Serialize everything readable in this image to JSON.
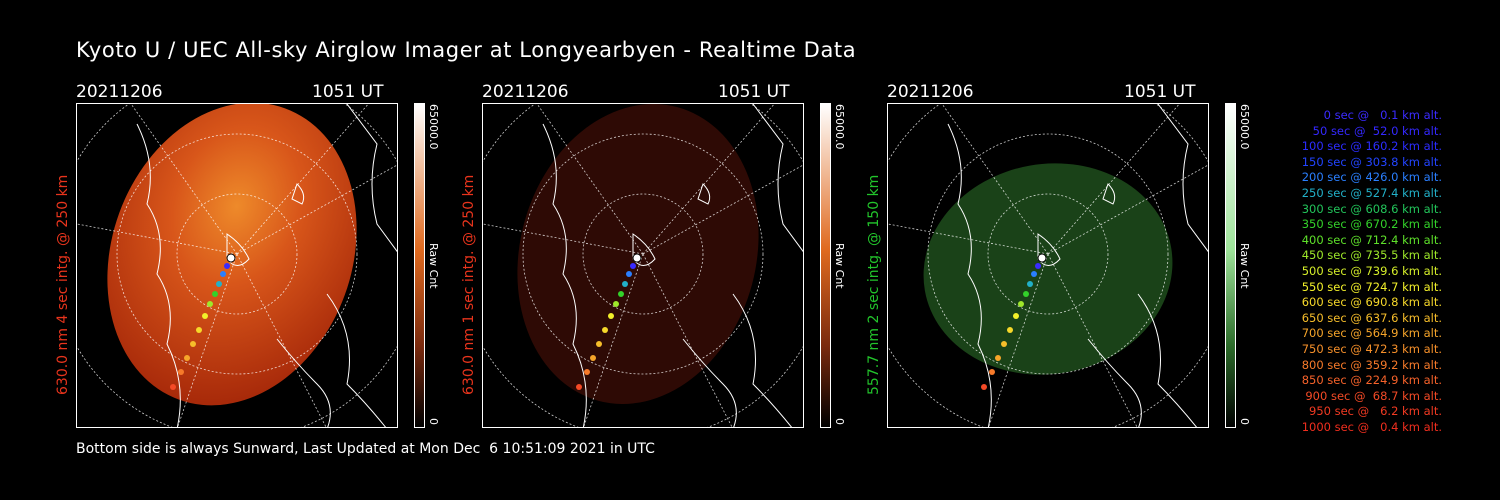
{
  "title": "Kyoto U / UEC All-sky Airglow Imager at Longyearbyen - Realtime Data",
  "footer": "Bottom side is always Sunward, Last Updated at Mon Dec  6 10:51:09 2021 in UTC",
  "panels": [
    {
      "date": "20211206",
      "time": "1051 UT",
      "ylabel": "630.0 nm 4 sec intg. @ 250 km",
      "label_color": "#e8341c",
      "colorbar_max": "65000.0",
      "colorbar_min": "0",
      "colorbar_label": "Raw Cnt",
      "cbar_top": "#ffffff",
      "cbar_mid": "#e06a1f",
      "cbar_bottom": "#000000",
      "glow_center": "#e7731e",
      "glow_edge": "#a82a0a"
    },
    {
      "date": "20211206",
      "time": "1051 UT",
      "ylabel": "630.0 nm 1 sec intg. @ 250 km",
      "label_color": "#e8341c",
      "colorbar_max": "65000.0",
      "colorbar_min": "0",
      "colorbar_label": "Raw Cnt",
      "cbar_top": "#ffffff",
      "cbar_mid": "#e06a1f",
      "cbar_bottom": "#000000",
      "glow_center": "#3a0d06",
      "glow_edge": "#2a0804"
    },
    {
      "date": "20211206",
      "time": "1051 UT",
      "ylabel": "557.7 nm 2 sec intg. @ 150 km",
      "label_color": "#22c42b",
      "colorbar_max": "65000.0",
      "colorbar_min": "0",
      "colorbar_label": "Raw Cnt",
      "cbar_top": "#ffffff",
      "cbar_mid": "#9ee39a",
      "cbar_bottom": "#000000",
      "glow_center": "#1d4a1b",
      "glow_edge": "#133312"
    }
  ],
  "legend": [
    {
      "text": "0 sec @   0.1 km alt.",
      "color": "#3a2bff"
    },
    {
      "text": "50 sec @  52.0 km alt.",
      "color": "#3428ff"
    },
    {
      "text": "100 sec @ 160.2 km alt.",
      "color": "#2c2cff"
    },
    {
      "text": "150 sec @ 303.8 km alt.",
      "color": "#2244ff"
    },
    {
      "text": "200 sec @ 426.0 km alt.",
      "color": "#2a7fff"
    },
    {
      "text": "250 sec @ 527.4 km alt.",
      "color": "#22b0c8"
    },
    {
      "text": "300 sec @ 608.6 km alt.",
      "color": "#22c45a"
    },
    {
      "text": "350 sec @ 670.2 km alt.",
      "color": "#33d22a"
    },
    {
      "text": "400 sec @ 712.4 km alt.",
      "color": "#5ee02a"
    },
    {
      "text": "450 sec @ 735.5 km alt.",
      "color": "#9ee82a"
    },
    {
      "text": "500 sec @ 739.6 km alt.",
      "color": "#d6ef2a"
    },
    {
      "text": "550 sec @ 724.7 km alt.",
      "color": "#f2f02a"
    },
    {
      "text": "600 sec @ 690.8 km alt.",
      "color": "#f6d82a"
    },
    {
      "text": "650 sec @ 637.6 km alt.",
      "color": "#f6bd2a"
    },
    {
      "text": "700 sec @ 564.9 km alt.",
      "color": "#f6a52a"
    },
    {
      "text": "750 sec @ 472.3 km alt.",
      "color": "#f6902a"
    },
    {
      "text": "800 sec @ 359.2 km alt.",
      "color": "#f67a2a"
    },
    {
      "text": "850 sec @ 224.9 km alt.",
      "color": "#f6622a"
    },
    {
      "text": "900 sec @  68.7 km alt.",
      "color": "#f44a26"
    },
    {
      "text": "950 sec @   6.2 km alt.",
      "color": "#f23a22"
    },
    {
      "text": "1000 sec @   0.4 km alt.",
      "color": "#f02e1e"
    }
  ]
}
